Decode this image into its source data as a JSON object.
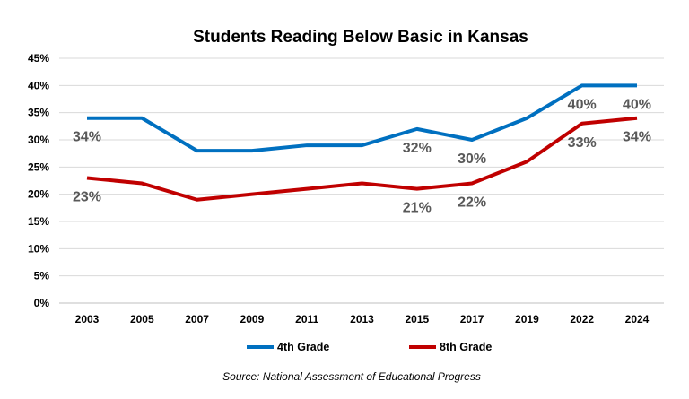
{
  "chart_data": {
    "type": "line",
    "title": "Students Reading Below Basic in Kansas",
    "categories": [
      "2003",
      "2005",
      "2007",
      "2009",
      "2011",
      "2013",
      "2015",
      "2017",
      "2019",
      "2022",
      "2024"
    ],
    "series": [
      {
        "name": "4th Grade",
        "color": "#0070C0",
        "values": [
          34,
          34,
          28,
          28,
          29,
          29,
          32,
          30,
          34,
          40,
          40
        ],
        "labeled_points": [
          "2003",
          "2015",
          "2017",
          "2022",
          "2024"
        ]
      },
      {
        "name": "8th Grade",
        "color": "#C00000",
        "values": [
          23,
          22,
          19,
          20,
          21,
          22,
          21,
          22,
          26,
          33,
          34
        ],
        "labeled_points": [
          "2003",
          "2015",
          "2017",
          "2022",
          "2024"
        ]
      }
    ],
    "ylim": [
      0,
      45
    ],
    "yticks": [
      "0%",
      "5%",
      "10%",
      "15%",
      "20%",
      "25%",
      "30%",
      "35%",
      "40%",
      "45%"
    ],
    "grid": true,
    "legend_placement": "bottom",
    "source": "Source: National Assessment of Educational Progress"
  }
}
